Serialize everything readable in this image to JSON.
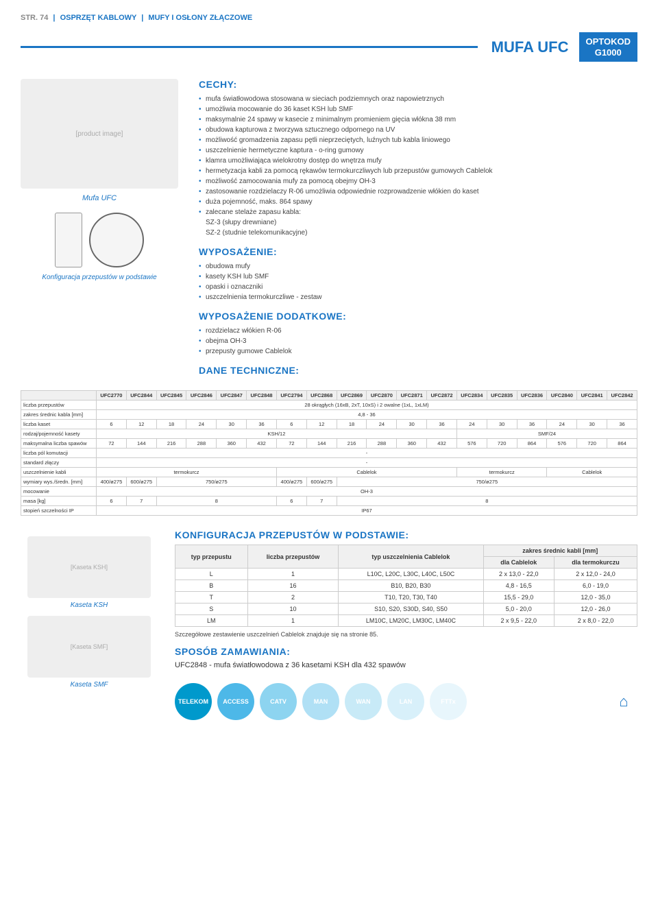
{
  "breadcrumb": {
    "prefix": "STR. 74",
    "part1": "OSPRZĘT KABLOWY",
    "part2": "MUFY I OSŁONY ZŁĄCZOWE"
  },
  "header": {
    "title": "MUFA UFC",
    "badge_line1": "OPTOKOD",
    "badge_line2": "G1000",
    "badge_bg": "#1a75c4"
  },
  "product": {
    "image_caption": "Mufa UFC",
    "config_caption": "Konfiguracja przepustów w podstawie"
  },
  "cechy": {
    "title": "CECHY:",
    "items": [
      "mufa światłowodowa stosowana w sieciach podziemnych oraz napowietrznych",
      "umożliwia mocowanie do 36 kaset KSH lub SMF",
      "maksymalnie 24 spawy w kasecie z minimalnym promieniem gięcia włókna 38 mm",
      "obudowa kapturowa z tworzywa sztucznego odpornego na UV",
      "możliwość gromadzenia zapasu pętli nieprzeciętych, luźnych tub kabla liniowego",
      "uszczelnienie hermetyczne kaptura - o-ring gumowy",
      "klamra umożliwiająca wielokrotny dostęp do wnętrza mufy",
      "hermetyzacja kabli za pomocą rękawów termokurczliwych lub przepustów gumowych Cablelok",
      "możliwość zamocowania mufy za pomocą obejmy OH-3",
      "zastosowanie rozdzielaczy R-06 umożliwia odpowiednie rozprowadzenie włókien do kaset",
      "duża pojemność, maks. 864 spawy",
      "zalecane stelaże zapasu kabla:"
    ],
    "sub_items": [
      "SZ-3 (słupy drewniane)",
      "SZ-2 (studnie telekomunikacyjne)"
    ]
  },
  "wyposazenie": {
    "title": "WYPOSAŻENIE:",
    "items": [
      "obudowa mufy",
      "kasety KSH lub SMF",
      "opaski i oznaczniki",
      "uszczelnienia termokurczliwe - zestaw"
    ]
  },
  "wyposazenie_dod": {
    "title": "WYPOSAŻENIE DODATKOWE:",
    "items": [
      "rozdzielacz włókien R-06",
      "obejma OH-3",
      "przepusty gumowe Cablelok"
    ]
  },
  "dane_tech": {
    "title": "DANE TECHNICZNE:",
    "columns": [
      "UFC2770",
      "UFC2844",
      "UFC2845",
      "UFC2846",
      "UFC2847",
      "UFC2848",
      "UFC2794",
      "UFC2868",
      "UFC2869",
      "UFC2870",
      "UFC2871",
      "UFC2872",
      "UFC2834",
      "UFC2835",
      "UFC2836",
      "UFC2840",
      "UFC2841",
      "UFC2842"
    ],
    "rows": [
      {
        "label": "liczba przepustów",
        "span": "28 okrągłych (16xB, 2xT, 10xS) i 2 owalne (1xL, 1xLM)"
      },
      {
        "label": "zakres średnic kabla [mm]",
        "span": "4,8 - 36"
      },
      {
        "label": "liczba kaset",
        "cells": [
          "6",
          "12",
          "18",
          "24",
          "30",
          "36",
          "6",
          "12",
          "18",
          "24",
          "30",
          "36",
          "24",
          "30",
          "36",
          "24",
          "30",
          "36"
        ]
      },
      {
        "label": "rodzaj/pojemność kasety",
        "spans": [
          {
            "text": "KSH/12",
            "cols": 12
          },
          {
            "text": "SMF/24",
            "cols": 6
          }
        ]
      },
      {
        "label": "maksymalna liczba spawów",
        "cells": [
          "72",
          "144",
          "216",
          "288",
          "360",
          "432",
          "72",
          "144",
          "216",
          "288",
          "360",
          "432",
          "576",
          "720",
          "864",
          "576",
          "720",
          "864"
        ]
      },
      {
        "label": "liczba pól komutacji",
        "span": "-"
      },
      {
        "label": "standard złączy",
        "span": "-"
      },
      {
        "label": "uszczelnienie kabli",
        "spans": [
          {
            "text": "termokurcz",
            "cols": 6
          },
          {
            "text": "Cablelok",
            "cols": 6
          },
          {
            "text": "termokurcz",
            "cols": 3
          },
          {
            "text": "Cablelok",
            "cols": 3
          }
        ]
      },
      {
        "label": "wymiary wys./średn. [mm]",
        "spans": [
          {
            "text": "400/ø275",
            "cols": 1
          },
          {
            "text": "600/ø275",
            "cols": 1
          },
          {
            "text": "750/ø275",
            "cols": 4
          },
          {
            "text": "400/ø275",
            "cols": 1
          },
          {
            "text": "600/ø275",
            "cols": 1
          },
          {
            "text": "750/ø275",
            "cols": 10
          }
        ]
      },
      {
        "label": "mocowanie",
        "span": "OH-3"
      },
      {
        "label": "masa [kg]",
        "spans": [
          {
            "text": "6",
            "cols": 1
          },
          {
            "text": "7",
            "cols": 1
          },
          {
            "text": "8",
            "cols": 4
          },
          {
            "text": "6",
            "cols": 1
          },
          {
            "text": "7",
            "cols": 1
          },
          {
            "text": "8",
            "cols": 10
          }
        ]
      },
      {
        "label": "stopień szczelności IP",
        "span": "IP67"
      }
    ]
  },
  "config_przepustow": {
    "title": "KONFIGURACJA PRZEPUSTÓW W PODSTAWIE:",
    "head": {
      "c1": "typ przepustu",
      "c2": "liczba przepustów",
      "c3": "typ uszczelnienia Cablelok",
      "c4": "zakres średnic kabli [mm]",
      "c4a": "dla Cablelok",
      "c4b": "dla termokurczu"
    },
    "rows": [
      {
        "c1": "L",
        "c2": "1",
        "c3": "L10C, L20C, L30C, L40C, L50C",
        "c4": "2 x 13,0 - 22,0",
        "c5": "2 x 12,0 - 24,0"
      },
      {
        "c1": "B",
        "c2": "16",
        "c3": "B10, B20, B30",
        "c4": "4,8 - 16,5",
        "c5": "6,0 - 19,0"
      },
      {
        "c1": "T",
        "c2": "2",
        "c3": "T10, T20, T30, T40",
        "c4": "15,5 - 29,0",
        "c5": "12,0 - 35,0"
      },
      {
        "c1": "S",
        "c2": "10",
        "c3": "S10, S20, S30D, S40, S50",
        "c4": "5,0 - 20,0",
        "c5": "12,0 - 26,0"
      },
      {
        "c1": "LM",
        "c2": "1",
        "c3": "LM10C, LM20C, LM30C, LM40C",
        "c4": "2 x 9,5 - 22,0",
        "c5": "2 x 8,0 - 22,0"
      }
    ],
    "note": "Szczegółowe zestawienie uszczelnień Cablelok znajduje się na stronie 85."
  },
  "sposob": {
    "title": "SPOSÓB ZAMAWIANIA:",
    "example": "UFC2848 - mufa światłowodowa z 36 kasetami KSH dla 432 spawów"
  },
  "kaseta": {
    "ksh_caption": "Kaseta KSH",
    "smf_caption": "Kaseta SMF"
  },
  "tags": {
    "items": [
      {
        "label": "TELEKOM",
        "bg": "#0099cc"
      },
      {
        "label": "ACCESS",
        "bg": "#4db8e8"
      },
      {
        "label": "CATV",
        "bg": "#8dd4f0"
      },
      {
        "label": "MAN",
        "bg": "#b0e0f5"
      },
      {
        "label": "WAN",
        "bg": "#c8eaf7"
      },
      {
        "label": "LAN",
        "bg": "#d8f0fa"
      },
      {
        "label": "FTTx",
        "bg": "#e8f6fc"
      }
    ]
  }
}
